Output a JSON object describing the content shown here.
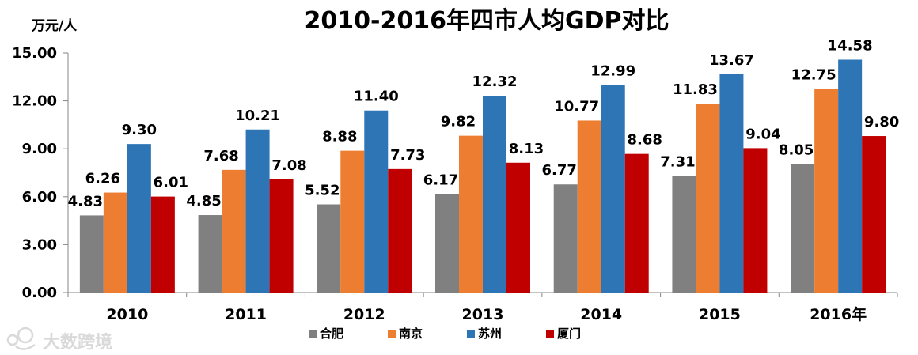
{
  "chart_data": {
    "type": "bar",
    "title": "2010-2016年四市人均GDP对比",
    "ylabel": "万元/人",
    "xlabel": "",
    "ylim": [
      0,
      15
    ],
    "yticks": [
      "0.00",
      "3.00",
      "6.00",
      "9.00",
      "12.00",
      "15.00"
    ],
    "categories": [
      "2010",
      "2011",
      "2012",
      "2013",
      "2014",
      "2015",
      "2016年"
    ],
    "series": [
      {
        "name": "合肥",
        "color": "#808080",
        "values": [
          4.83,
          4.85,
          5.52,
          6.17,
          6.77,
          7.31,
          8.05
        ]
      },
      {
        "name": "南京",
        "color": "#ED7D31",
        "values": [
          6.26,
          7.68,
          8.88,
          9.82,
          10.77,
          11.83,
          12.75
        ]
      },
      {
        "name": "苏州",
        "color": "#2E75B6",
        "values": [
          9.3,
          10.21,
          11.4,
          12.32,
          12.99,
          13.67,
          14.58
        ]
      },
      {
        "name": "厦门",
        "color": "#C00000",
        "values": [
          6.01,
          7.08,
          7.73,
          8.13,
          8.68,
          9.04,
          9.8
        ]
      }
    ],
    "legend_position": "bottom",
    "grid": false
  },
  "watermark": {
    "text": "大数跨境"
  }
}
